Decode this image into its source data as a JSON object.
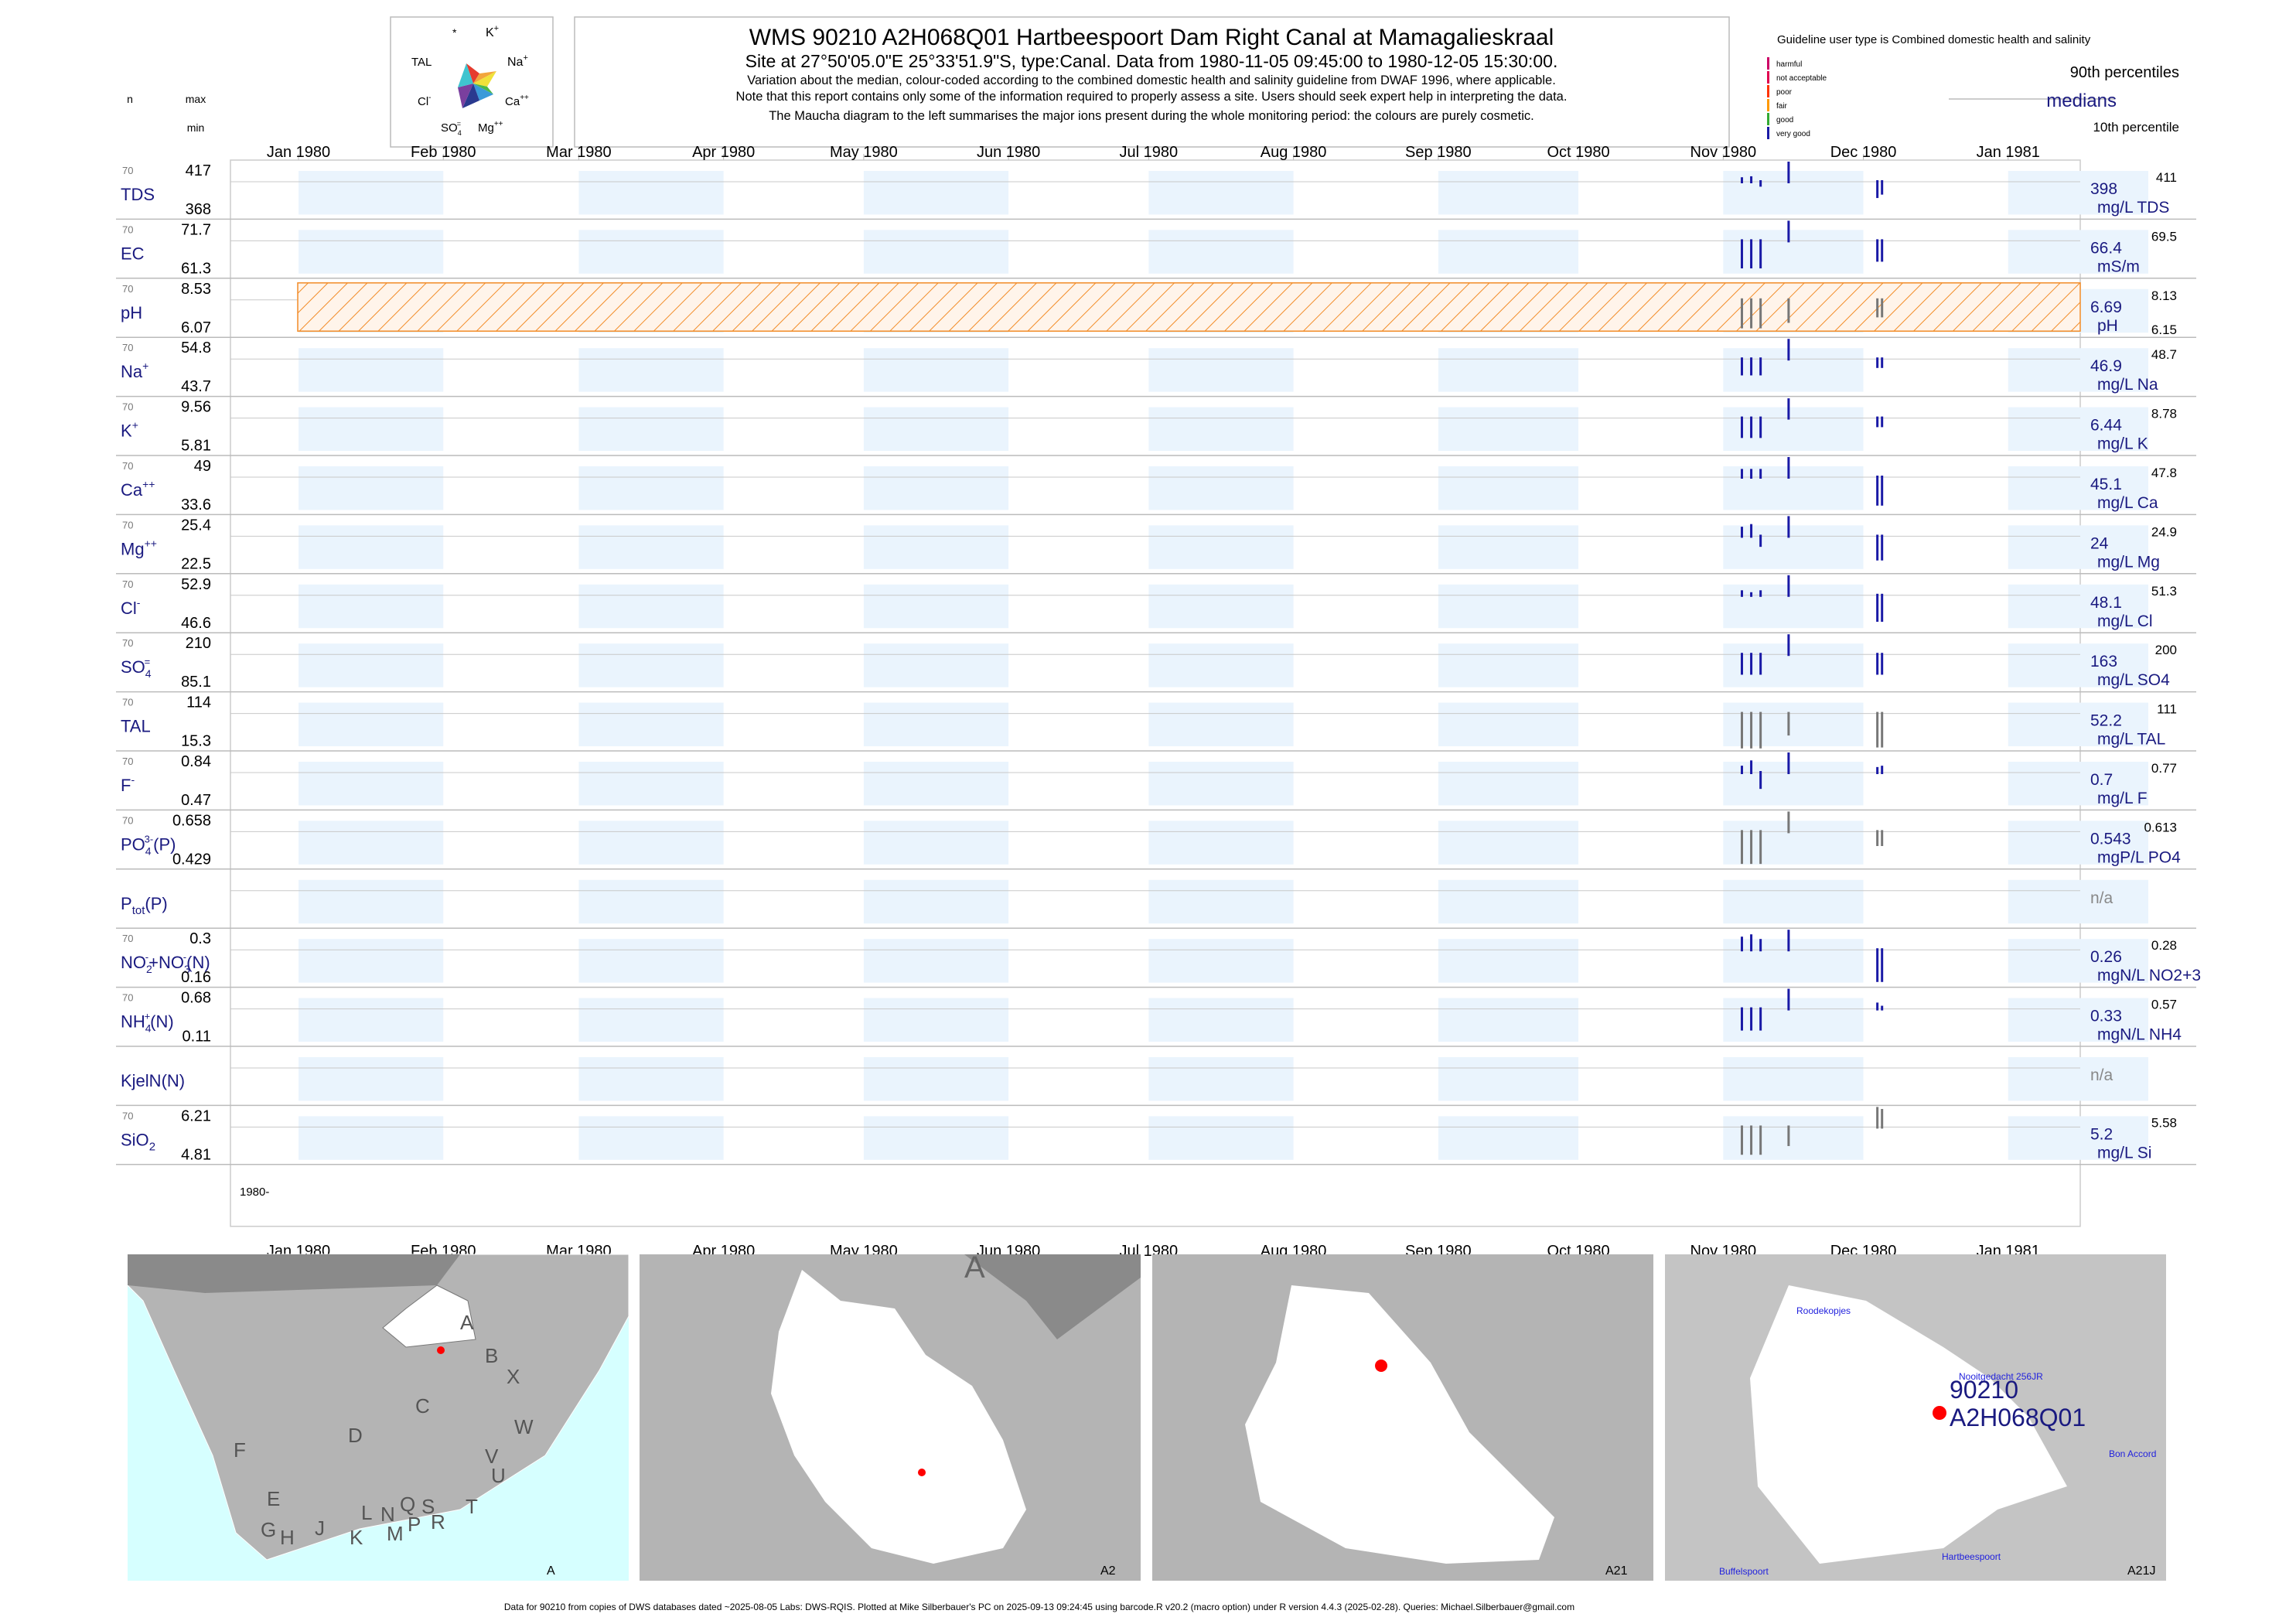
{
  "header": {
    "title": "WMS 90210 A2H068Q01 Hartbeespoort Dam Right Canal at Mamagalieskraal",
    "subtitle": "Site at 27°50'05.0\"E 25°33'51.9\"S, type:Canal.  Data from 1980-11-05 09:45:00 to 1980-12-05 15:30:00.",
    "note1": "Variation about the median,  colour-coded according to the combined domestic health and salinity guideline from DWAF 1996, where applicable.",
    "note2": "Note that this report contains only some of the information required to properly assess a site. Users should seek expert help in interpreting the data.",
    "note3": "The Maucha diagram to the left summarises the major ions present during the whole monitoring period: the colours are purely cosmetic."
  },
  "legend": {
    "guideline": "Guideline user type is Combined domestic health and salinity",
    "classes": [
      {
        "label": "harmful",
        "color": "#cc0066"
      },
      {
        "label": "not acceptable",
        "color": "#e0004f"
      },
      {
        "label": "poor",
        "color": "#ff3300"
      },
      {
        "label": "fair",
        "color": "#ff9900"
      },
      {
        "label": "good",
        "color": "#33aa33"
      },
      {
        "label": "very good",
        "color": "#1a1aa6"
      }
    ],
    "p90": "90th percentiles",
    "medians": "medians",
    "p10": "10th percentile"
  },
  "maucha": {
    "labels": {
      "star": "*",
      "k": "K",
      "na": "Na",
      "ca": "Ca",
      "mg": "Mg",
      "so4": "SO",
      "cl": "Cl",
      "tal": "TAL"
    }
  },
  "column_labels": {
    "n": "n",
    "max": "max",
    "min": "min"
  },
  "axis": {
    "months": [
      "Jan 1980",
      "Feb 1980",
      "Mar 1980",
      "Apr 1980",
      "May 1980",
      "Jun 1980",
      "Jul 1980",
      "Aug 1980",
      "Sep 1980",
      "Oct 1980",
      "Nov 1980",
      "Dec 1980",
      "Jan 1981"
    ],
    "year_label": "1980-"
  },
  "chart_data": {
    "type": "bar",
    "x_start": "1980-01-01",
    "x_end": "1981-01-31",
    "rows": [
      {
        "name": "TDS",
        "label_main": "TDS",
        "label_sup": "",
        "label_sub": "",
        "label_tail": "",
        "n": "70",
        "max": "417",
        "min": "368",
        "median": "398",
        "unit": "mg/L TDS",
        "p90": "411",
        "p10": "",
        "guide": false,
        "samples": [
          {
            "date": "1980-11-05",
            "value": 401
          },
          {
            "date": "1980-11-07",
            "value": 402
          },
          {
            "date": "1980-11-09",
            "value": 395
          },
          {
            "date": "1980-11-15",
            "value": 417
          },
          {
            "date": "1980-12-04",
            "value": 385
          },
          {
            "date": "1980-12-05",
            "value": 388
          }
        ]
      },
      {
        "name": "EC",
        "label_main": "EC",
        "label_sup": "",
        "label_sub": "",
        "label_tail": "",
        "n": "70",
        "max": "71.7",
        "min": "61.3",
        "median": "66.4",
        "unit": "mS/m",
        "p90": "69.5",
        "p10": "",
        "guide": false,
        "samples": [
          {
            "date": "1980-11-05",
            "value": 62.5
          },
          {
            "date": "1980-11-07",
            "value": 62.5
          },
          {
            "date": "1980-11-09",
            "value": 62.5
          },
          {
            "date": "1980-11-15",
            "value": 71.7
          },
          {
            "date": "1980-12-04",
            "value": 63.5
          },
          {
            "date": "1980-12-05",
            "value": 63.5
          }
        ]
      },
      {
        "name": "pH",
        "label_main": "pH",
        "label_sup": "",
        "label_sub": "",
        "label_tail": "",
        "n": "70",
        "max": "8.53",
        "min": "6.07",
        "median": "6.69",
        "unit": "pH",
        "p90": "8.13",
        "p10": "6.15",
        "guide": true,
        "samples": [
          {
            "date": "1980-11-05",
            "value": 6.2
          },
          {
            "date": "1980-11-07",
            "value": 6.2
          },
          {
            "date": "1980-11-09",
            "value": 6.2
          },
          {
            "date": "1980-11-15",
            "value": 6.3
          },
          {
            "date": "1980-12-04",
            "value": 6.4
          },
          {
            "date": "1980-12-05",
            "value": 6.4
          }
        ]
      },
      {
        "name": "Na",
        "label_main": "Na",
        "label_sup": "+",
        "label_sub": "",
        "label_tail": "",
        "n": "70",
        "max": "54.8",
        "min": "43.7",
        "median": "46.9",
        "unit": "mg/L Na",
        "p90": "48.7",
        "p10": "",
        "guide": false,
        "samples": [
          {
            "date": "1980-11-05",
            "value": 45.5
          },
          {
            "date": "1980-11-07",
            "value": 45.5
          },
          {
            "date": "1980-11-09",
            "value": 45.5
          },
          {
            "date": "1980-11-15",
            "value": 54.8
          },
          {
            "date": "1980-12-04",
            "value": 46.2
          },
          {
            "date": "1980-12-05",
            "value": 46.2
          }
        ]
      },
      {
        "name": "K",
        "label_main": "K",
        "label_sup": "+",
        "label_sub": "",
        "label_tail": "",
        "n": "70",
        "max": "9.56",
        "min": "5.81",
        "median": "6.44",
        "unit": "mg/L K",
        "p90": "8.78",
        "p10": "",
        "guide": false,
        "samples": [
          {
            "date": "1980-11-05",
            "value": 6.1
          },
          {
            "date": "1980-11-07",
            "value": 6.1
          },
          {
            "date": "1980-11-09",
            "value": 6.1
          },
          {
            "date": "1980-11-15",
            "value": 9.5
          },
          {
            "date": "1980-12-04",
            "value": 6.3
          },
          {
            "date": "1980-12-05",
            "value": 6.3
          }
        ]
      },
      {
        "name": "Ca",
        "label_main": "Ca",
        "label_sup": "++",
        "label_sub": "",
        "label_tail": "",
        "n": "70",
        "max": "49",
        "min": "33.6",
        "median": "45.1",
        "unit": "mg/L Ca",
        "p90": "47.8",
        "p10": "",
        "guide": false,
        "samples": [
          {
            "date": "1980-11-05",
            "value": 46.5
          },
          {
            "date": "1980-11-07",
            "value": 46.5
          },
          {
            "date": "1980-11-09",
            "value": 46.5
          },
          {
            "date": "1980-11-15",
            "value": 49
          },
          {
            "date": "1980-12-04",
            "value": 36
          },
          {
            "date": "1980-12-05",
            "value": 36
          }
        ]
      },
      {
        "name": "Mg",
        "label_main": "Mg",
        "label_sup": "++",
        "label_sub": "",
        "label_tail": "",
        "n": "70",
        "max": "25.4",
        "min": "22.5",
        "median": "24",
        "unit": "mg/L Mg",
        "p90": "24.9",
        "p10": "",
        "guide": false,
        "samples": [
          {
            "date": "1980-11-05",
            "value": 24.6
          },
          {
            "date": "1980-11-07",
            "value": 24.8
          },
          {
            "date": "1980-11-09",
            "value": 23.6
          },
          {
            "date": "1980-11-15",
            "value": 25.4
          },
          {
            "date": "1980-12-04",
            "value": 23
          },
          {
            "date": "1980-12-05",
            "value": 23
          }
        ]
      },
      {
        "name": "Cl",
        "label_main": "Cl",
        "label_sup": "-",
        "label_sub": "",
        "label_tail": "",
        "n": "70",
        "max": "52.9",
        "min": "46.6",
        "median": "48.1",
        "unit": "mg/L Cl",
        "p90": "51.3",
        "p10": "",
        "guide": false,
        "samples": [
          {
            "date": "1980-11-05",
            "value": 49
          },
          {
            "date": "1980-11-07",
            "value": 48.5
          },
          {
            "date": "1980-11-09",
            "value": 49
          },
          {
            "date": "1980-11-15",
            "value": 52.9
          },
          {
            "date": "1980-12-04",
            "value": 47
          },
          {
            "date": "1980-12-05",
            "value": 47
          }
        ]
      },
      {
        "name": "SO4",
        "label_main": "SO",
        "label_sup": "=",
        "label_sub": "4",
        "label_tail": "",
        "n": "70",
        "max": "210",
        "min": "85.1",
        "median": "163",
        "unit": "mg/L SO4",
        "p90": "200",
        "p10": "",
        "guide": false,
        "samples": [
          {
            "date": "1980-11-05",
            "value": 120
          },
          {
            "date": "1980-11-07",
            "value": 120
          },
          {
            "date": "1980-11-09",
            "value": 120
          },
          {
            "date": "1980-11-15",
            "value": 210
          },
          {
            "date": "1980-12-04",
            "value": 120
          },
          {
            "date": "1980-12-05",
            "value": 120
          }
        ]
      },
      {
        "name": "TAL",
        "label_main": "TAL",
        "label_sup": "",
        "label_sub": "",
        "label_tail": "",
        "n": "70",
        "max": "114",
        "min": "15.3",
        "median": "52.2",
        "unit": "mg/L TAL",
        "p90": "111",
        "p10": "",
        "guide": false,
        "samples": [
          {
            "date": "1980-11-05",
            "value": 16
          },
          {
            "date": "1980-11-07",
            "value": 16
          },
          {
            "date": "1980-11-09",
            "value": 16
          },
          {
            "date": "1980-11-15",
            "value": 30
          },
          {
            "date": "1980-12-04",
            "value": 17
          },
          {
            "date": "1980-12-05",
            "value": 17
          }
        ]
      },
      {
        "name": "F",
        "label_main": "F",
        "label_sup": "-",
        "label_sub": "",
        "label_tail": "",
        "n": "70",
        "max": "0.84",
        "min": "0.47",
        "median": "0.7",
        "unit": "mg/L F",
        "p90": "0.77",
        "p10": "",
        "guide": false,
        "samples": [
          {
            "date": "1980-11-05",
            "value": 0.74
          },
          {
            "date": "1980-11-07",
            "value": 0.78
          },
          {
            "date": "1980-11-09",
            "value": 0.6
          },
          {
            "date": "1980-11-15",
            "value": 0.84
          },
          {
            "date": "1980-12-04",
            "value": 0.73
          },
          {
            "date": "1980-12-05",
            "value": 0.74
          }
        ]
      },
      {
        "name": "PO4",
        "label_main": "PO",
        "label_sup": "3-",
        "label_sub": "4",
        "label_tail": "(P)",
        "n": "70",
        "max": "0.658",
        "min": "0.429",
        "median": "0.543",
        "unit": "mgP/L PO4",
        "p90": "0.613",
        "p10": "",
        "guide": false,
        "samples": [
          {
            "date": "1980-11-05",
            "value": 0.44
          },
          {
            "date": "1980-11-07",
            "value": 0.44
          },
          {
            "date": "1980-11-09",
            "value": 0.44
          },
          {
            "date": "1980-11-15",
            "value": 0.658
          },
          {
            "date": "1980-12-04",
            "value": 0.5
          },
          {
            "date": "1980-12-05",
            "value": 0.5
          }
        ]
      },
      {
        "name": "Ptot",
        "label_main": "P",
        "label_sup": "",
        "label_sub": "tot",
        "label_tail": "(P)",
        "n": "",
        "max": "",
        "min": "",
        "median": "n/a",
        "unit": "",
        "p90": "",
        "p10": "",
        "guide": false,
        "samples": []
      },
      {
        "name": "NO2+NO3",
        "label_main": "NO",
        "label_sup": "-",
        "label_sub": "2",
        "label_tail": "+NO",
        "label_sup2": "-",
        "label_sub2": "3",
        "label_tail2": "(N)",
        "n": "70",
        "max": "0.3",
        "min": "0.16",
        "median": "0.26",
        "unit": "mgN/L NO2+3",
        "p90": "0.28",
        "p10": "",
        "guide": false,
        "samples": [
          {
            "date": "1980-11-05",
            "value": 0.285
          },
          {
            "date": "1980-11-07",
            "value": 0.29
          },
          {
            "date": "1980-11-09",
            "value": 0.28
          },
          {
            "date": "1980-11-15",
            "value": 0.3
          },
          {
            "date": "1980-12-04",
            "value": 0.17
          },
          {
            "date": "1980-12-05",
            "value": 0.17
          }
        ]
      },
      {
        "name": "NH4",
        "label_main": "NH",
        "label_sup": "+",
        "label_sub": "4",
        "label_tail": "(N)",
        "n": "70",
        "max": "0.68",
        "min": "0.11",
        "median": "0.33",
        "unit": "mgN/L NH4",
        "p90": "0.57",
        "p10": "",
        "guide": false,
        "samples": [
          {
            "date": "1980-11-05",
            "value": 0.2
          },
          {
            "date": "1980-11-07",
            "value": 0.2
          },
          {
            "date": "1980-11-09",
            "value": 0.2
          },
          {
            "date": "1980-11-15",
            "value": 0.68
          },
          {
            "date": "1980-12-04",
            "value": 0.42
          },
          {
            "date": "1980-12-05",
            "value": 0.36
          }
        ]
      },
      {
        "name": "KjelN",
        "label_main": "KjelN(N)",
        "label_sup": "",
        "label_sub": "",
        "label_tail": "",
        "n": "",
        "max": "",
        "min": "",
        "median": "n/a",
        "unit": "",
        "p90": "",
        "p10": "",
        "guide": false,
        "samples": []
      },
      {
        "name": "SiO2",
        "label_main": "SiO",
        "label_sup": "",
        "label_sub": "2",
        "label_tail": "",
        "n": "70",
        "max": "6.21",
        "min": "4.81",
        "median": "5.2",
        "unit": "mg/L Si",
        "p90": "5.58",
        "p10": "",
        "guide": false,
        "samples": [
          {
            "date": "1980-11-05",
            "value": 4.9
          },
          {
            "date": "1980-11-07",
            "value": 4.9
          },
          {
            "date": "1980-11-09",
            "value": 4.9
          },
          {
            "date": "1980-11-15",
            "value": 5.0
          },
          {
            "date": "1980-12-04",
            "value": 6.21
          },
          {
            "date": "1980-12-05",
            "value": 6.1
          }
        ]
      }
    ]
  },
  "maps": {
    "panels": [
      {
        "caption": "A",
        "letters": [
          "A",
          "B",
          "X",
          "C",
          "W",
          "D",
          "V",
          "U",
          "F",
          "T",
          "E",
          "L",
          "N",
          "Q",
          "S",
          "R",
          "G",
          "H",
          "J",
          "K",
          "M",
          "P"
        ]
      },
      {
        "caption": "A2",
        "letters": [
          "A"
        ]
      },
      {
        "caption": "A21",
        "letters": []
      },
      {
        "caption": "A21J",
        "places": [
          "Roodekopjes",
          "Nooitgedacht 256JR",
          "Bon Accord",
          "Hartbeespoort",
          "Buffelspoort"
        ],
        "site_number": "90210",
        "site_code": "A2H068Q01"
      }
    ]
  },
  "footer": "Data for 90210 from copies of DWS databases dated ~2025-08-05 Labs: DWS-RQIS. Plotted at Mike Silberbauer's PC on 2025-09-13 09:24:45 using barcode.R v20.2 (macro option) under R version 4.4.3 (2025-02-28). Queries: Michael.Silberbauer@gmail.com"
}
